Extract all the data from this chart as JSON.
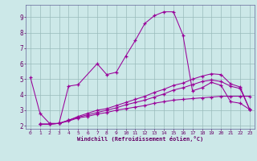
{
  "xlabel": "Windchill (Refroidissement éolien,°C)",
  "bg_color": "#cce8e8",
  "line_color": "#990099",
  "grid_color": "#99bbbb",
  "xlim": [
    -0.5,
    23.5
  ],
  "ylim": [
    1.8,
    9.8
  ],
  "yticks": [
    2,
    3,
    4,
    5,
    6,
    7,
    8,
    9
  ],
  "xticks": [
    0,
    1,
    2,
    3,
    4,
    5,
    6,
    7,
    8,
    9,
    10,
    11,
    12,
    13,
    14,
    15,
    16,
    17,
    18,
    19,
    20,
    21,
    22,
    23
  ],
  "series": [
    {
      "x": [
        0,
        1,
        2,
        3,
        4,
        5,
        7,
        8,
        9,
        10,
        11,
        12,
        13,
        14,
        15,
        16,
        17,
        18,
        19,
        20,
        21,
        22,
        23
      ],
      "y": [
        5.1,
        2.8,
        2.15,
        2.15,
        4.55,
        4.65,
        6.0,
        5.3,
        5.45,
        6.5,
        7.5,
        8.6,
        9.1,
        9.35,
        9.35,
        7.85,
        4.25,
        4.45,
        4.8,
        4.6,
        3.55,
        3.45,
        3.05
      ]
    },
    {
      "x": [
        1,
        2,
        3,
        4,
        5,
        6,
        7,
        8,
        9,
        10,
        11,
        12,
        13,
        14,
        15,
        16,
        17,
        18,
        19,
        20,
        21,
        22,
        23
      ],
      "y": [
        2.1,
        2.1,
        2.15,
        2.3,
        2.5,
        2.6,
        2.75,
        2.85,
        3.0,
        3.1,
        3.2,
        3.3,
        3.45,
        3.55,
        3.65,
        3.7,
        3.75,
        3.8,
        3.85,
        3.9,
        3.9,
        3.9,
        3.9
      ]
    },
    {
      "x": [
        1,
        2,
        3,
        4,
        5,
        6,
        7,
        8,
        9,
        10,
        11,
        12,
        13,
        14,
        15,
        16,
        17,
        18,
        19,
        20,
        21,
        22,
        23
      ],
      "y": [
        2.1,
        2.1,
        2.15,
        2.35,
        2.6,
        2.8,
        3.0,
        3.1,
        3.3,
        3.5,
        3.7,
        3.9,
        4.15,
        4.35,
        4.6,
        4.75,
        5.0,
        5.2,
        5.35,
        5.3,
        4.7,
        4.5,
        3.05
      ]
    },
    {
      "x": [
        1,
        2,
        3,
        4,
        5,
        6,
        7,
        8,
        9,
        10,
        11,
        12,
        13,
        14,
        15,
        16,
        17,
        18,
        19,
        20,
        21,
        22,
        23
      ],
      "y": [
        2.1,
        2.1,
        2.15,
        2.35,
        2.55,
        2.7,
        2.85,
        3.0,
        3.15,
        3.35,
        3.5,
        3.65,
        3.85,
        4.05,
        4.3,
        4.45,
        4.65,
        4.85,
        4.95,
        4.85,
        4.55,
        4.4,
        3.05
      ]
    }
  ]
}
